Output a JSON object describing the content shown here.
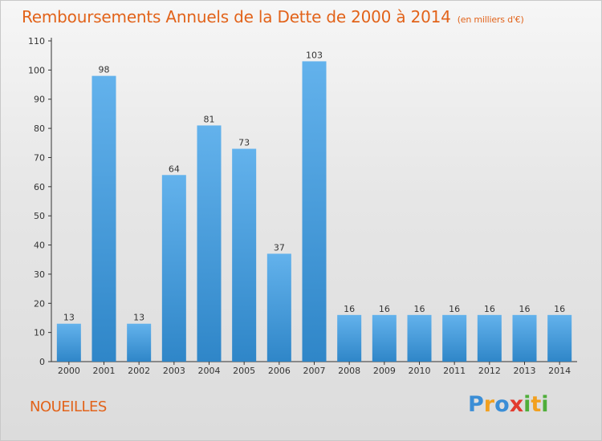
{
  "title": "Remboursements Annuels de la Dette de 2000 à 2014",
  "unit_note": "(en milliers d'€)",
  "commune": "NOUEILLES",
  "logo": {
    "text": "Proxiti",
    "letters": [
      {
        "char": "P",
        "color": "#3b8ed6"
      },
      {
        "char": "r",
        "color": "#f2a01f"
      },
      {
        "char": "o",
        "color": "#3b8ed6"
      },
      {
        "char": "x",
        "color": "#e23b2e"
      },
      {
        "char": "i",
        "color": "#4fae3a"
      },
      {
        "char": "t",
        "color": "#f2a01f"
      },
      {
        "char": "i",
        "color": "#4fae3a"
      }
    ]
  },
  "colors": {
    "bar_top": "#63b2ec",
    "bar_bottom": "#2f86c8",
    "accent": "#e2631a",
    "axis": "#333333",
    "grid": "#dddddd"
  },
  "chart_data": {
    "type": "bar",
    "title": "Remboursements Annuels de la Dette de 2000 à 2014",
    "categories": [
      "2000",
      "2001",
      "2002",
      "2003",
      "2004",
      "2005",
      "2006",
      "2007",
      "2008",
      "2009",
      "2010",
      "2011",
      "2012",
      "2013",
      "2014"
    ],
    "values": [
      13,
      98,
      13,
      64,
      81,
      73,
      37,
      103,
      16,
      16,
      16,
      16,
      16,
      16,
      16
    ],
    "ylim": [
      0,
      110
    ],
    "yticks": [
      0,
      10,
      20,
      30,
      40,
      50,
      60,
      70,
      80,
      90,
      100,
      110
    ],
    "grid": false,
    "legend": "none"
  }
}
